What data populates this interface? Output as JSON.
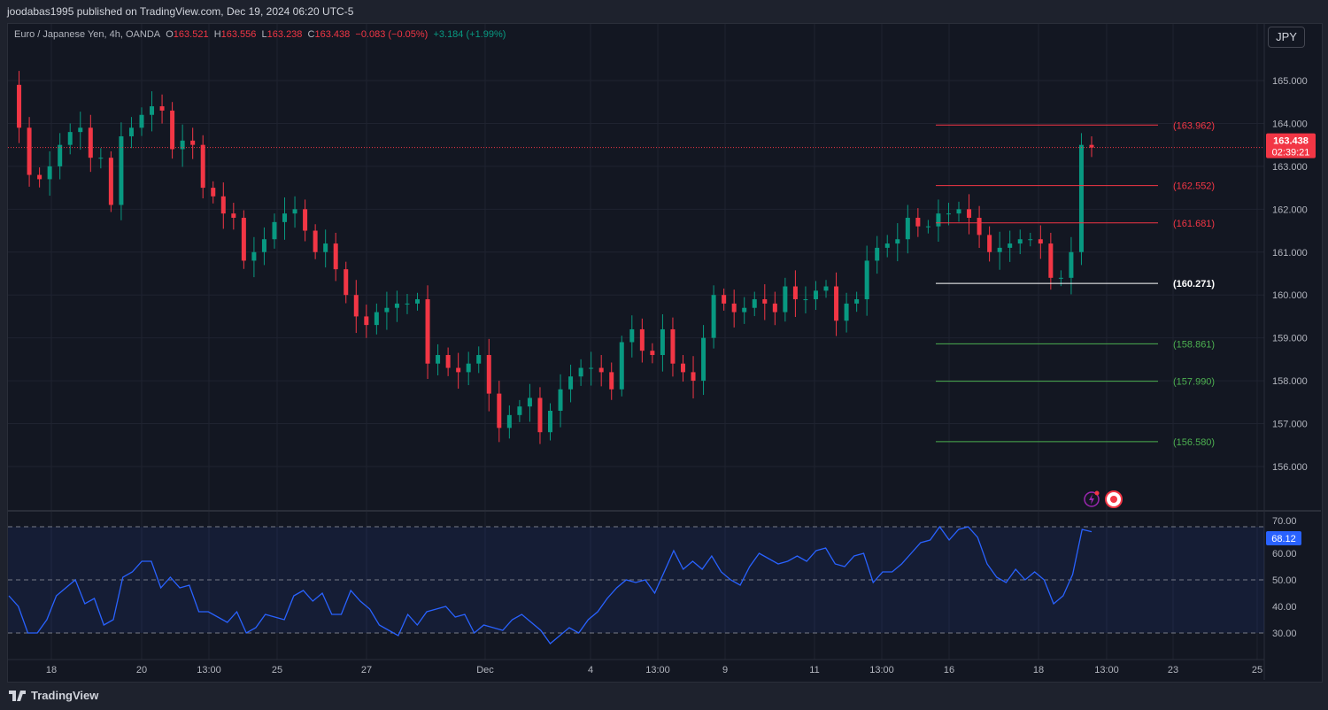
{
  "header": {
    "published": "joodabas1995 published on TradingView.com, Dec 19, 2024 06:20 UTC-5"
  },
  "legend": {
    "symbol": "Euro / Japanese Yen, 4h, OANDA",
    "o_label": "O",
    "o": "163.521",
    "h_label": "H",
    "h": "163.556",
    "l_label": "L",
    "l": "163.238",
    "c_label": "C",
    "c": "163.438",
    "change": "−0.083 (−0.05%)",
    "change2": "+3.184 (+1.99%)"
  },
  "currency_button": "JPY",
  "price_tag": {
    "price": "163.438",
    "countdown": "02:39:21"
  },
  "rsi_tag": "68.12",
  "footer": {
    "brand": "TradingView"
  },
  "colors": {
    "up": "#089981",
    "down": "#f23645",
    "rsi": "#2962ff",
    "bg": "#131722"
  },
  "chart_data": {
    "type": "candlestick",
    "price_axis": {
      "range": [
        155.1,
        165.8
      ],
      "ticks": [
        "165.000",
        "164.000",
        "163.000",
        "162.000",
        "161.000",
        "160.000",
        "159.000",
        "158.000",
        "157.000",
        "156.000"
      ]
    },
    "x_ticks": [
      "18",
      "20",
      "13:00",
      "25",
      "27",
      "Dec",
      "4",
      "13:00",
      "9",
      "11",
      "13:00",
      "16",
      "18",
      "13:00",
      "23",
      "25"
    ],
    "closes": [
      164.9,
      163.9,
      162.8,
      162.7,
      163.0,
      163.5,
      163.8,
      163.9,
      163.2,
      163.2,
      162.1,
      163.7,
      163.9,
      164.2,
      164.4,
      164.3,
      163.4,
      163.6,
      163.5,
      162.5,
      162.3,
      161.9,
      161.8,
      160.8,
      161.0,
      161.3,
      161.7,
      161.9,
      162.0,
      161.5,
      161.0,
      161.2,
      160.6,
      160.0,
      159.5,
      159.3,
      159.6,
      159.7,
      159.8,
      159.8,
      159.9,
      158.4,
      158.6,
      158.3,
      158.2,
      158.4,
      158.6,
      157.7,
      156.9,
      157.2,
      157.4,
      157.6,
      156.8,
      157.3,
      157.8,
      158.1,
      158.3,
      158.3,
      158.2,
      157.8,
      158.9,
      159.2,
      158.7,
      158.6,
      159.2,
      158.4,
      158.2,
      158.0,
      159.0,
      160.0,
      159.8,
      159.6,
      159.7,
      159.9,
      159.8,
      159.6,
      160.2,
      159.9,
      159.9,
      160.1,
      160.2,
      159.4,
      159.8,
      159.9,
      160.8,
      161.1,
      161.2,
      161.3,
      161.8,
      161.6,
      161.6,
      161.9,
      161.9,
      162.0,
      161.8,
      161.4,
      161.0,
      161.1,
      161.2,
      161.3,
      161.3,
      161.2,
      160.4,
      160.4,
      161.0,
      163.5,
      163.438
    ],
    "fib_levels": [
      {
        "value": 163.962,
        "label": "(163.962)",
        "color": "#f23645"
      },
      {
        "value": 162.552,
        "label": "(162.552)",
        "color": "#f23645"
      },
      {
        "value": 161.681,
        "label": "(161.681)",
        "color": "#f23645"
      },
      {
        "value": 160.271,
        "label": "(160.271)",
        "color": "#ffffff"
      },
      {
        "value": 158.861,
        "label": "(158.861)",
        "color": "#4caf50"
      },
      {
        "value": 157.99,
        "label": "(157.990)",
        "color": "#4caf50"
      },
      {
        "value": 156.58,
        "label": "(156.580)",
        "color": "#4caf50"
      }
    ],
    "current_price": 163.438,
    "rsi": {
      "ticks": [
        "70.00",
        "60.00",
        "50.00",
        "40.00",
        "30.00"
      ],
      "bands": [
        70,
        50,
        30
      ],
      "last": 68.12,
      "values": [
        44,
        40,
        30,
        30,
        35,
        44,
        47,
        50,
        41,
        43,
        33,
        35,
        51,
        53,
        57,
        57,
        47,
        51,
        47,
        48,
        38,
        38,
        36,
        34,
        38,
        30,
        32,
        37,
        36,
        35,
        44,
        46,
        42,
        45,
        37,
        37,
        46,
        42,
        39,
        33,
        31,
        29,
        37,
        33,
        38,
        39,
        40,
        36,
        37,
        30,
        33,
        32,
        31,
        35,
        37,
        34,
        31,
        26,
        29,
        32,
        30,
        35,
        38,
        43,
        47,
        50,
        49,
        50,
        45,
        53,
        61,
        54,
        57,
        54,
        59,
        53,
        50,
        48,
        55,
        60,
        58,
        56,
        57,
        59,
        57,
        61,
        62,
        56,
        55,
        59,
        60,
        49,
        53,
        53,
        56,
        60,
        64,
        65,
        70,
        65,
        69,
        70,
        66,
        56,
        51,
        49,
        54,
        50,
        53,
        50,
        41,
        44,
        52,
        69,
        68.12
      ]
    }
  }
}
